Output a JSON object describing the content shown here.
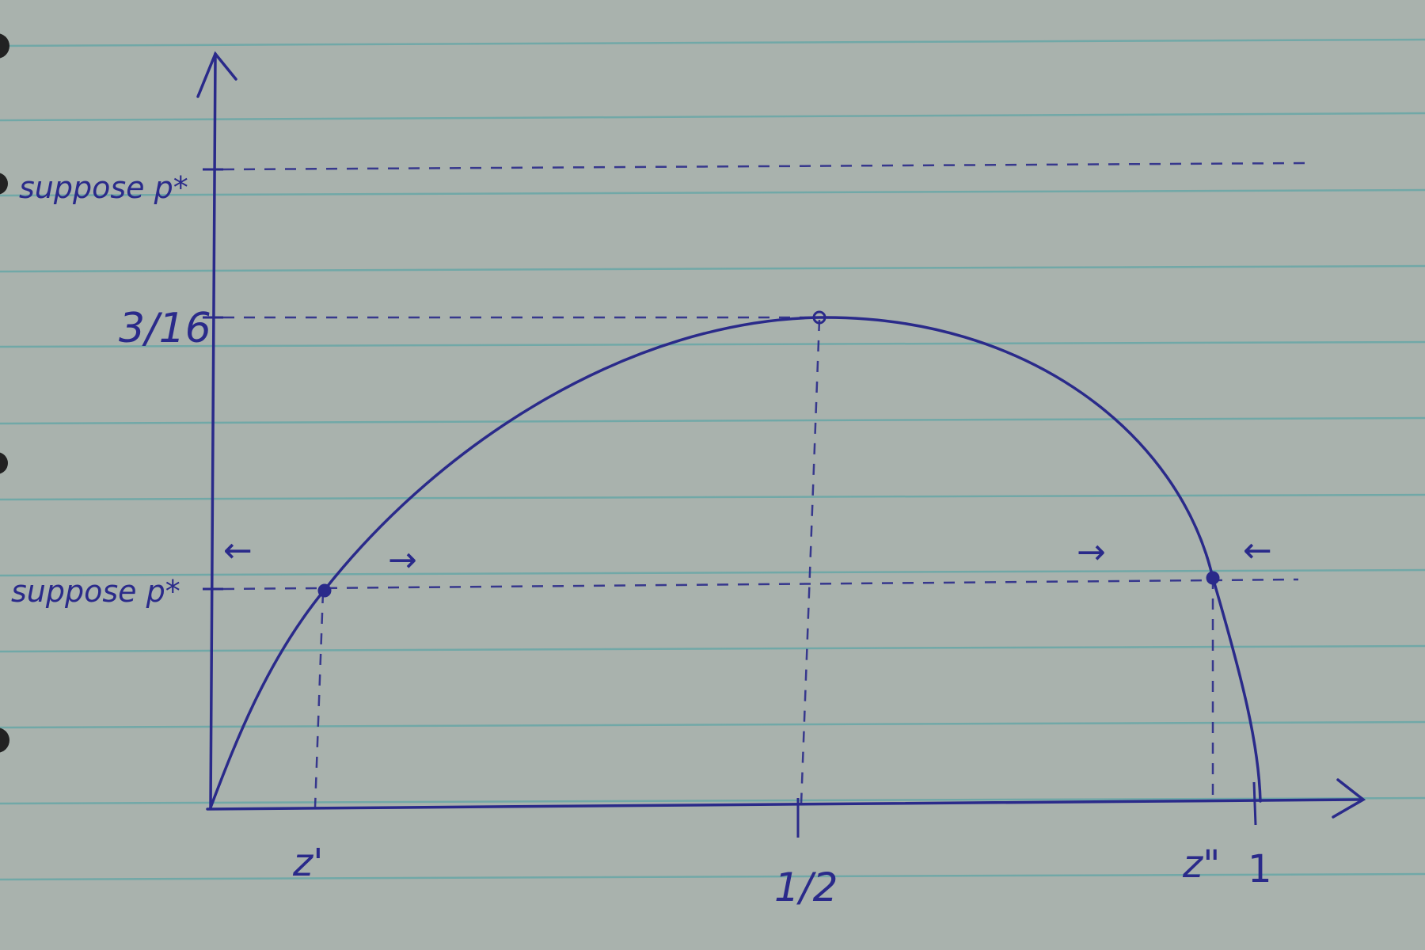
{
  "paper": {
    "background": "#a9b2ad",
    "rule_color": "#5fa5a6",
    "ink_color": "#2a2a8a"
  },
  "y_labels": {
    "suppose_upper": "suppose p*",
    "peak": "3/16",
    "suppose_lower": "suppose p*"
  },
  "x_labels": {
    "z_prime": "z'",
    "half": "1/2",
    "z_double_prime": "z\"",
    "one": "1"
  },
  "arrows": {
    "left_of_z_prime": "←",
    "right_of_z_prime": "→",
    "left_of_z_double_prime": "→",
    "right_of_z_double_prime": "←"
  }
}
